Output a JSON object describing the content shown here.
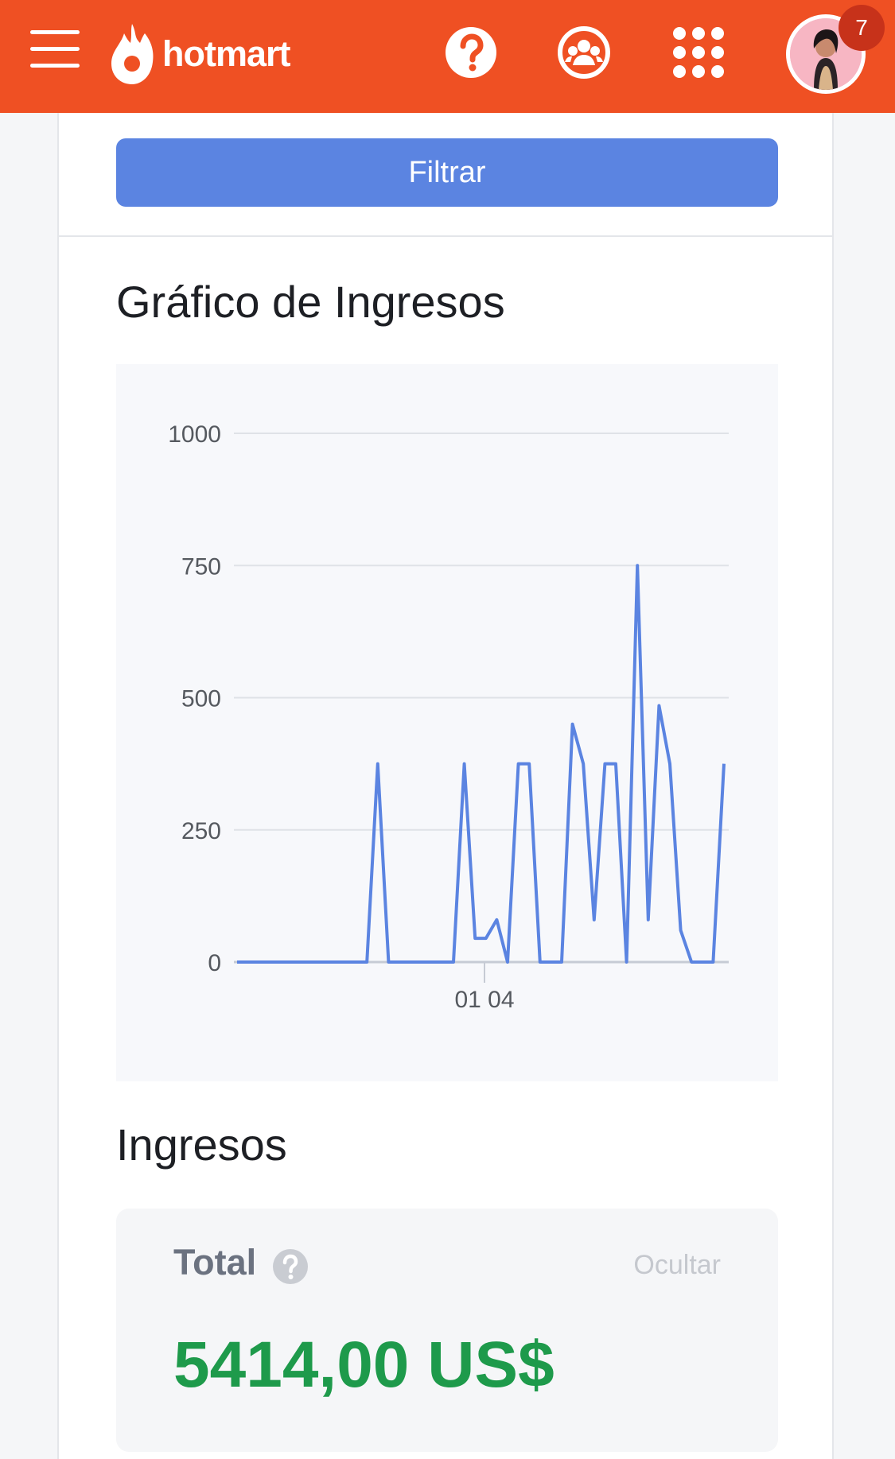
{
  "header": {
    "brand": "hotmart",
    "notification_count": "7"
  },
  "filter": {
    "button_label": "Filtrar"
  },
  "chart_section": {
    "title": "Gráfico de Ingresos"
  },
  "chart_data": {
    "type": "line",
    "ylim": [
      0,
      1000
    ],
    "y_ticks": [
      "1000",
      "750",
      "500",
      "250",
      "0"
    ],
    "x_tick_label": "01 04",
    "grid": true,
    "series": [
      {
        "color": "#5b84e1",
        "values": [
          0,
          0,
          0,
          0,
          0,
          0,
          0,
          0,
          0,
          0,
          0,
          0,
          0,
          375,
          0,
          0,
          0,
          0,
          0,
          0,
          0,
          375,
          45,
          45,
          80,
          0,
          375,
          375,
          0,
          0,
          0,
          450,
          375,
          80,
          375,
          375,
          0,
          750,
          80,
          485,
          375,
          60,
          0,
          0,
          0,
          375
        ]
      }
    ]
  },
  "ingresos": {
    "title": "Ingresos",
    "total_label": "Total",
    "hide_label": "Ocultar",
    "total_value": "5414,00 US$",
    "value_color": "#1e9a4b"
  }
}
